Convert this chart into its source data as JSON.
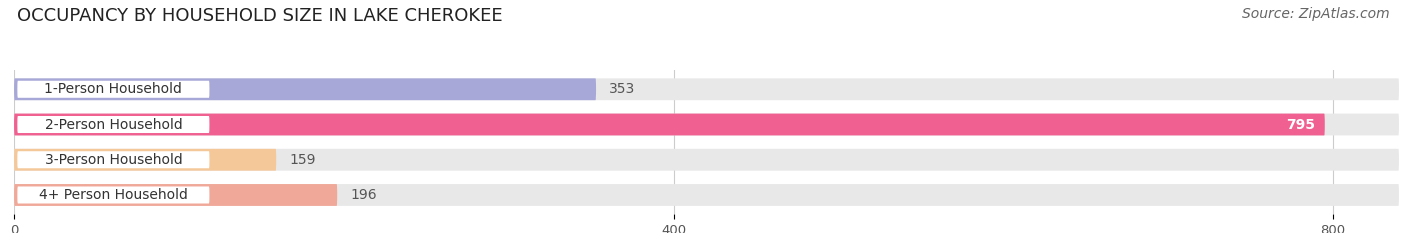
{
  "title": "OCCUPANCY BY HOUSEHOLD SIZE IN LAKE CHEROKEE",
  "source": "Source: ZipAtlas.com",
  "categories": [
    "1-Person Household",
    "2-Person Household",
    "3-Person Household",
    "4+ Person Household"
  ],
  "values": [
    353,
    795,
    159,
    196
  ],
  "bar_colors": [
    "#a8a8d8",
    "#f06090",
    "#f5c89a",
    "#f0a898"
  ],
  "bar_bg_color": "#e8e8e8",
  "value_inside": [
    false,
    true,
    false,
    false
  ],
  "xlim_max": 840,
  "xticks": [
    0,
    400,
    800
  ],
  "title_fontsize": 13,
  "source_fontsize": 10,
  "label_fontsize": 10,
  "value_fontsize": 10,
  "background_color": "#ffffff"
}
